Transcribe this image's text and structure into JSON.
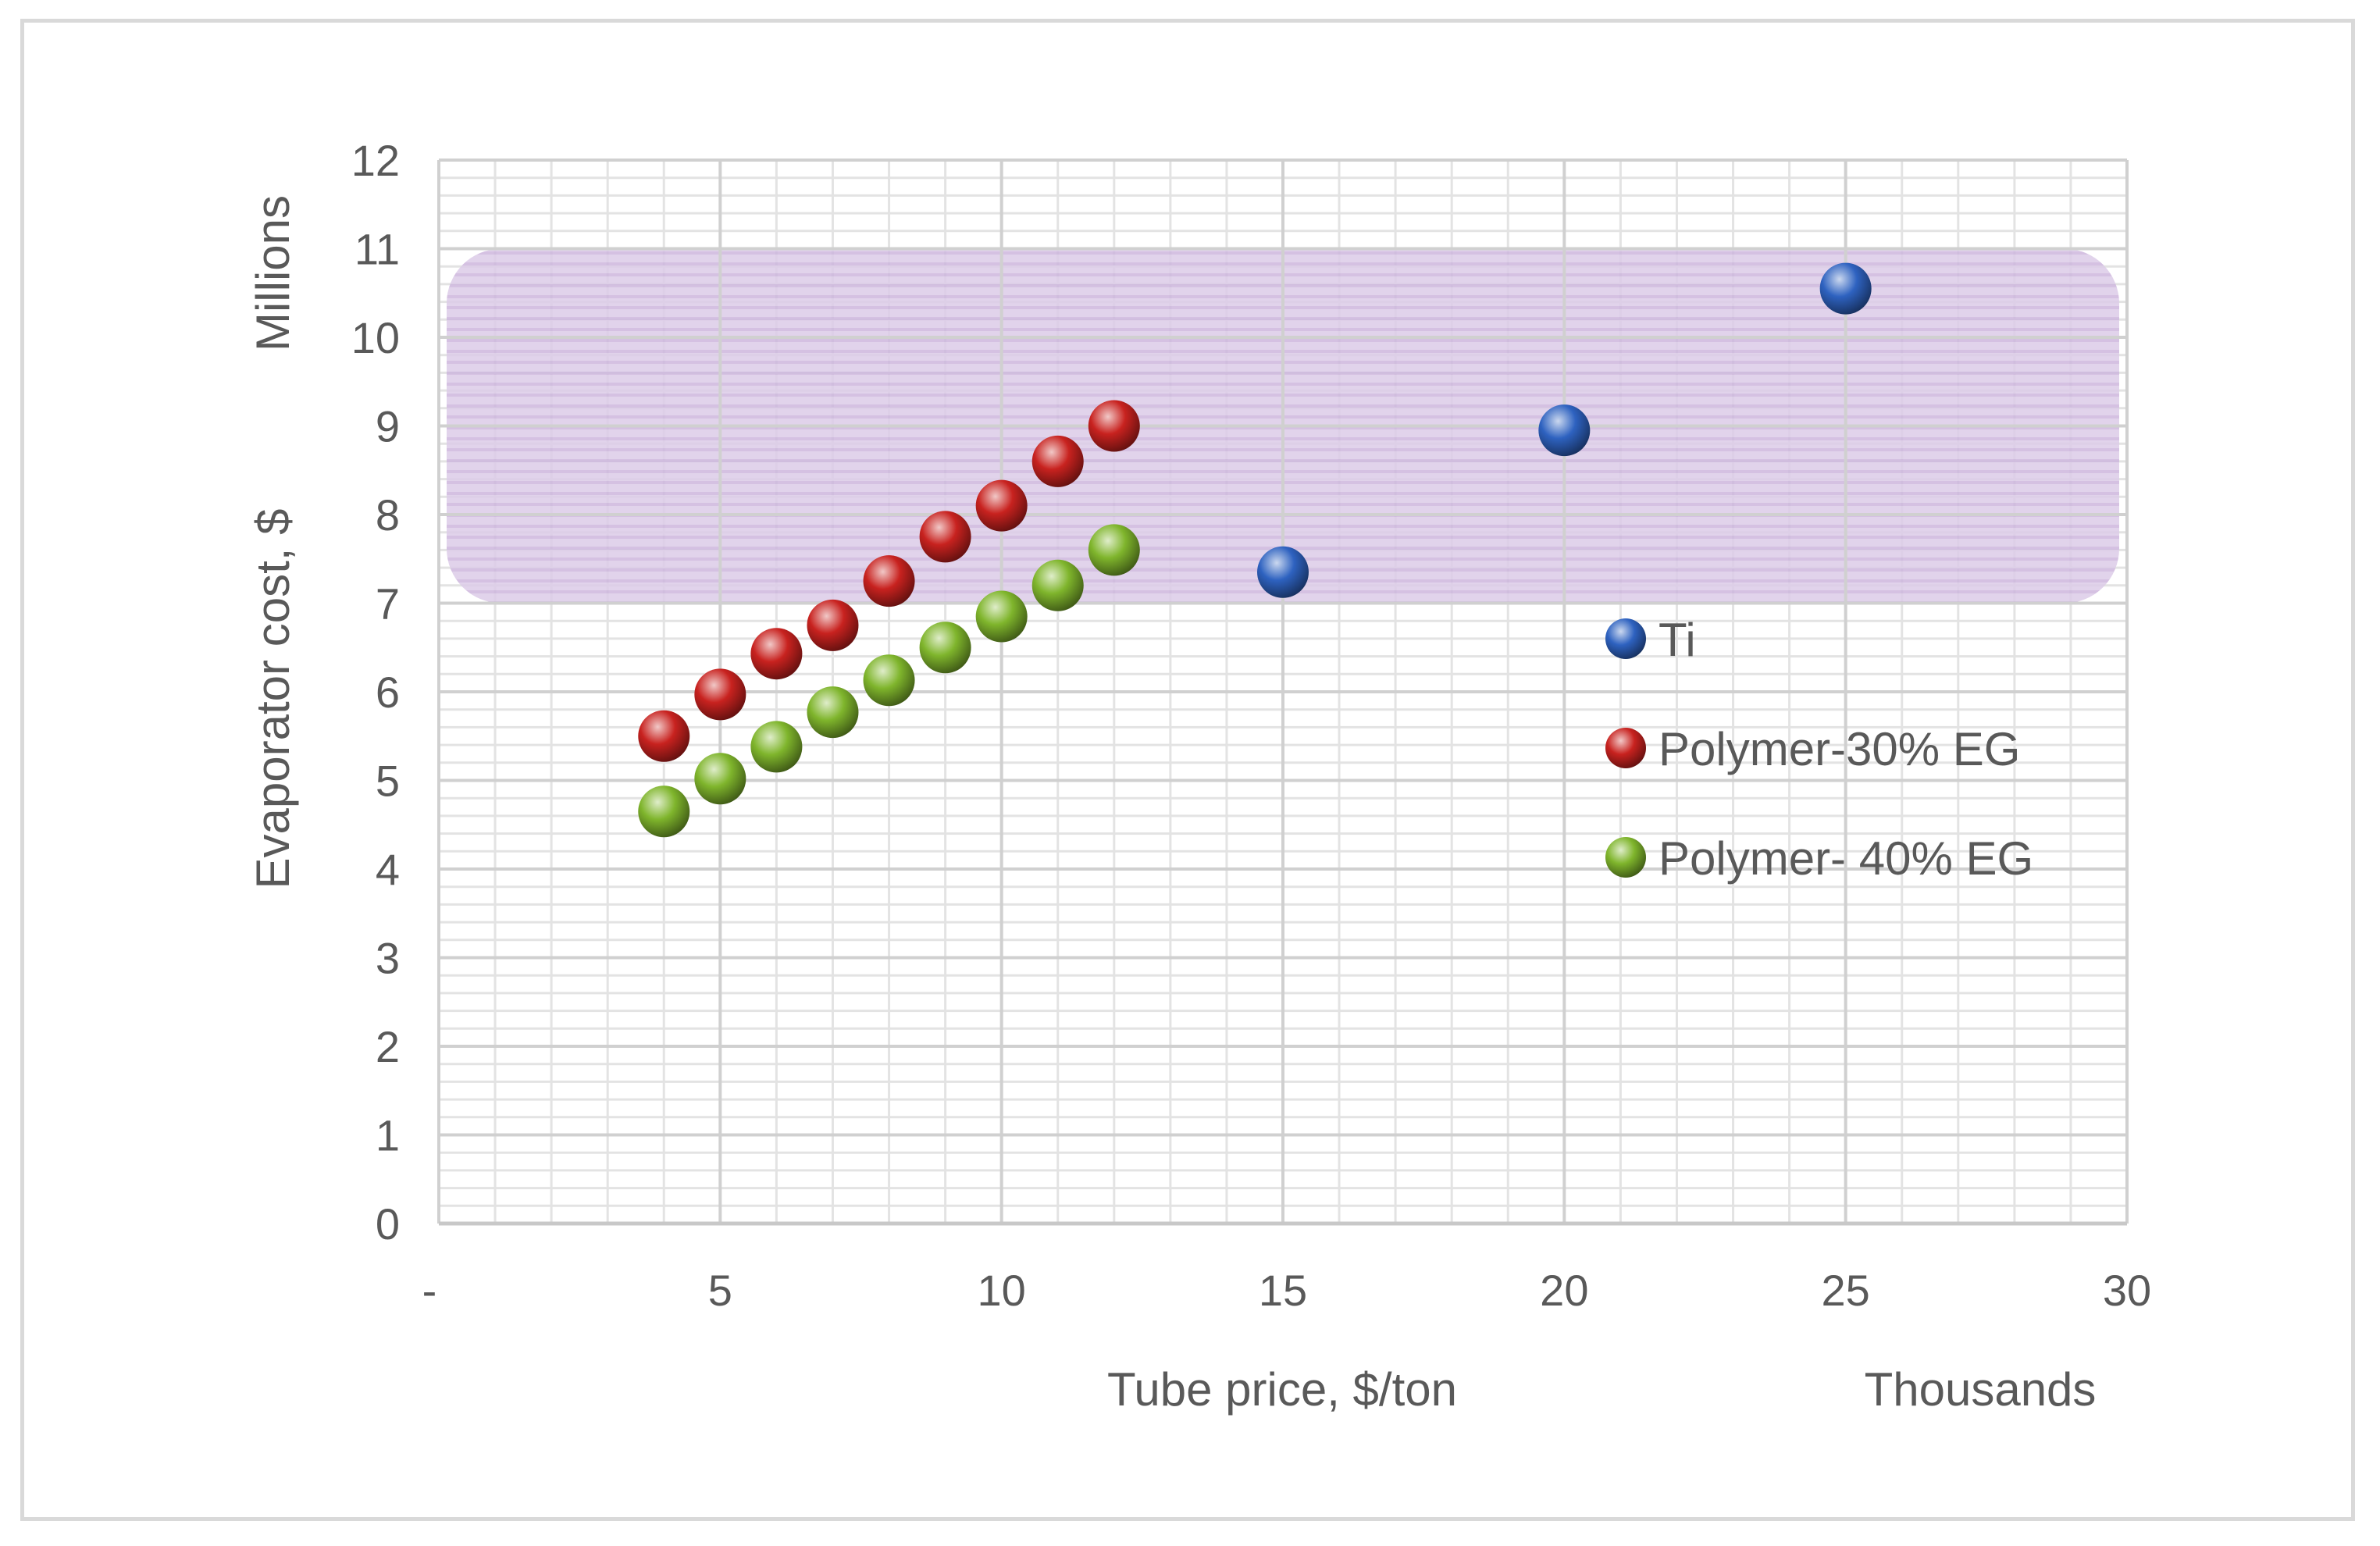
{
  "chart_data": {
    "type": "scatter",
    "title": "",
    "xlabel": "Tube price, $/ton",
    "x_display_units": "Thousands",
    "ylabel": "Evaporator cost, $",
    "y_display_units": "Millions",
    "xlim": [
      0,
      30
    ],
    "ylim": [
      0,
      12
    ],
    "x_tick_labels": [
      "-",
      "5",
      "10",
      "15",
      "20",
      "25",
      "30"
    ],
    "y_tick_labels": [
      "0",
      "1",
      "2",
      "3",
      "4",
      "5",
      "6",
      "7",
      "8",
      "9",
      "10",
      "11",
      "12"
    ],
    "grid": true,
    "legend_position": "right-inside",
    "highlight_band": {
      "y_range": [
        7,
        11
      ],
      "color": "#d9c8e6"
    },
    "series": [
      {
        "name": "Ti",
        "color": "#2e62c0",
        "x": [
          15,
          20,
          25
        ],
        "y": [
          7.35,
          8.95,
          10.55
        ]
      },
      {
        "name": "Polymer-30% EG",
        "color": "#c8221f",
        "x": [
          4,
          5,
          6,
          7,
          8,
          9,
          10,
          11,
          12
        ],
        "y": [
          5.5,
          5.97,
          6.43,
          6.75,
          7.25,
          7.75,
          8.1,
          8.6,
          9.0
        ]
      },
      {
        "name": "Polymer- 40% EG",
        "color": "#7fb52c",
        "x": [
          4,
          5,
          6,
          7,
          8,
          9,
          10,
          11,
          12
        ],
        "y": [
          4.65,
          5.02,
          5.38,
          5.77,
          6.13,
          6.5,
          6.85,
          7.2,
          7.6
        ]
      }
    ]
  }
}
